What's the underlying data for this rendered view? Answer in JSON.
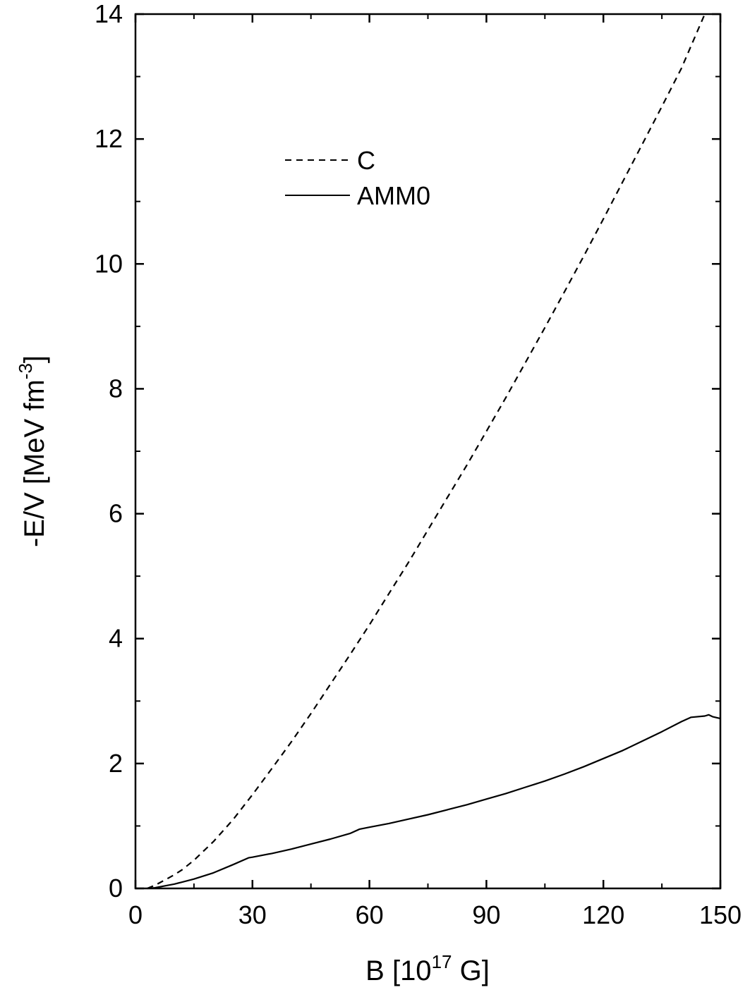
{
  "chart_data": {
    "type": "line",
    "title": "",
    "xlabel": {
      "main": "B [10",
      "sup": "17",
      "tail": " G]"
    },
    "ylabel": {
      "main": "-E/V  [MeV fm",
      "sup": "-3",
      "tail": "]"
    },
    "xlim": [
      0,
      150
    ],
    "ylim": [
      0,
      14
    ],
    "xticks": [
      0,
      30,
      60,
      90,
      120,
      150
    ],
    "yticks": [
      0,
      2,
      4,
      6,
      8,
      10,
      12,
      14
    ],
    "grid": false,
    "legend_position": "upper-left",
    "series": [
      {
        "name": "C",
        "line_style": "dashed",
        "color": "#000000",
        "x": [
          3,
          5,
          8,
          10,
          12,
          15,
          20,
          25,
          30,
          35,
          40,
          45,
          50,
          55,
          60,
          65,
          70,
          75,
          80,
          85,
          90,
          95,
          100,
          105,
          110,
          115,
          120,
          125,
          130,
          135,
          140,
          146
        ],
        "y": [
          0.0,
          0.05,
          0.15,
          0.22,
          0.3,
          0.45,
          0.75,
          1.1,
          1.5,
          1.92,
          2.35,
          2.8,
          3.27,
          3.74,
          4.22,
          4.72,
          5.22,
          5.74,
          6.26,
          6.78,
          7.32,
          7.86,
          8.42,
          8.98,
          9.55,
          10.13,
          10.72,
          11.32,
          11.92,
          12.52,
          13.13,
          14.0
        ]
      },
      {
        "name": "AMM0",
        "line_style": "solid",
        "color": "#000000",
        "x": [
          3,
          5,
          10,
          15,
          20,
          25,
          29,
          30,
          35,
          40,
          45,
          50,
          55,
          57.5,
          60,
          65,
          70,
          75,
          80,
          85,
          90,
          95,
          100,
          105,
          110,
          115,
          120,
          125,
          130,
          135,
          140,
          142.5,
          146,
          147,
          148,
          150
        ],
        "y": [
          0.0,
          0.01,
          0.07,
          0.15,
          0.25,
          0.38,
          0.49,
          0.5,
          0.56,
          0.63,
          0.71,
          0.79,
          0.88,
          0.95,
          0.98,
          1.04,
          1.11,
          1.18,
          1.26,
          1.34,
          1.43,
          1.52,
          1.62,
          1.72,
          1.83,
          1.95,
          2.08,
          2.21,
          2.36,
          2.51,
          2.67,
          2.74,
          2.76,
          2.78,
          2.75,
          2.72
        ]
      }
    ]
  }
}
